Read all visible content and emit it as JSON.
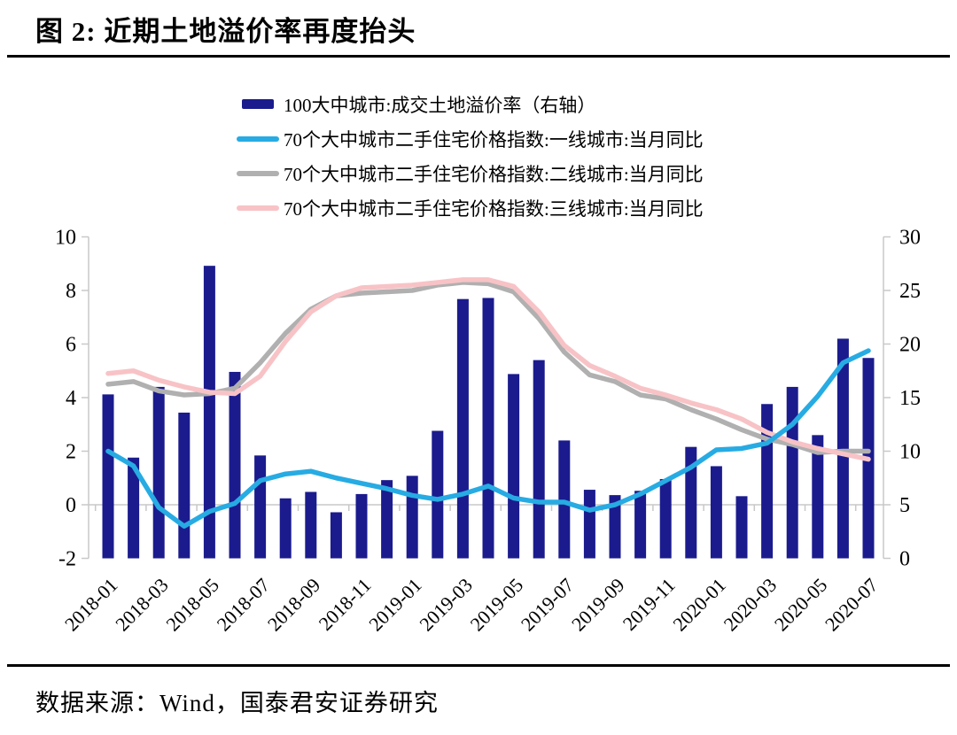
{
  "title": "图 2:  近期土地溢价率再度抬头",
  "source": "数据来源：Wind，国泰君安证券研究",
  "colors": {
    "bar_navy": "#1b1b8e",
    "line_blue": "#27abe3",
    "line_gray": "#b0b0b0",
    "line_pink": "#f8c3c6",
    "axis_gray": "#c8c8c8",
    "text": "#000000"
  },
  "legend": [
    {
      "label": "100大中城市:成交土地溢价率（右轴）",
      "marker": "bar",
      "color": "#1b1b8e"
    },
    {
      "label": "70个大中城市二手住宅价格指数:一线城市:当月同比",
      "marker": "line",
      "color": "#27abe3"
    },
    {
      "label": "70个大中城市二手住宅价格指数:二线城市:当月同比",
      "marker": "line",
      "color": "#b0b0b0"
    },
    {
      "label": "70个大中城市二手住宅价格指数:三线城市:当月同比",
      "marker": "line",
      "color": "#f8c3c6"
    }
  ],
  "chart_data": {
    "type": "bar",
    "subtype": "combo-bar-line",
    "x": [
      "2018-01",
      "2018-02",
      "2018-03",
      "2018-04",
      "2018-05",
      "2018-06",
      "2018-07",
      "2018-08",
      "2018-09",
      "2018-10",
      "2018-11",
      "2018-12",
      "2019-01",
      "2019-02",
      "2019-03",
      "2019-04",
      "2019-05",
      "2019-06",
      "2019-07",
      "2019-08",
      "2019-09",
      "2019-10",
      "2019-11",
      "2019-12",
      "2020-01",
      "2020-02",
      "2020-03",
      "2020-04",
      "2020-05",
      "2020-06",
      "2020-07"
    ],
    "x_tick_labels": [
      "2018-01",
      "2018-03",
      "2018-05",
      "2018-07",
      "2018-09",
      "2018-11",
      "2019-01",
      "2019-03",
      "2019-05",
      "2019-07",
      "2019-09",
      "2019-11",
      "2020-01",
      "2020-03",
      "2020-05",
      "2020-07"
    ],
    "left_axis": {
      "ticks": [
        10,
        8,
        6,
        4,
        2,
        0,
        -2
      ],
      "range": [
        -2,
        10
      ]
    },
    "right_axis": {
      "ticks": [
        30,
        25,
        20,
        15,
        10,
        5,
        0
      ],
      "range": [
        0,
        30
      ]
    },
    "grid": "zero-line-only",
    "legend_position": "top",
    "series": [
      {
        "name": "100大中城市:成交土地溢价率（右轴）",
        "type": "bar",
        "axis": "right",
        "color": "#1b1b8e",
        "values": [
          15.3,
          9.4,
          16.0,
          13.6,
          27.3,
          17.4,
          9.6,
          5.6,
          6.2,
          4.3,
          6.0,
          7.3,
          7.7,
          11.9,
          24.2,
          24.3,
          17.2,
          18.5,
          11.0,
          6.4,
          5.9,
          6.3,
          7.4,
          10.4,
          8.6,
          5.8,
          14.4,
          16.0,
          11.5,
          20.5,
          18.7
        ]
      },
      {
        "name": "70个大中城市二手住宅价格指数:二线城市:当月同比",
        "type": "line",
        "axis": "left",
        "color": "#b0b0b0",
        "values": [
          4.5,
          4.6,
          4.25,
          4.1,
          4.15,
          4.35,
          5.3,
          6.4,
          7.3,
          7.8,
          7.9,
          7.95,
          8.0,
          8.2,
          8.3,
          8.25,
          7.95,
          6.95,
          5.7,
          4.85,
          4.6,
          4.1,
          3.95,
          3.55,
          3.2,
          2.8,
          2.45,
          2.25,
          1.95,
          2.0,
          2.0
        ]
      },
      {
        "name": "70个大中城市二手住宅价格指数:三线城市:当月同比",
        "type": "line",
        "axis": "left",
        "color": "#f8c3c6",
        "values": [
          4.9,
          5.0,
          4.65,
          4.4,
          4.2,
          4.15,
          4.8,
          6.1,
          7.2,
          7.8,
          8.1,
          8.15,
          8.2,
          8.3,
          8.4,
          8.4,
          8.15,
          7.2,
          5.95,
          5.2,
          4.8,
          4.35,
          4.1,
          3.8,
          3.55,
          3.2,
          2.7,
          2.35,
          2.1,
          1.9,
          1.7
        ]
      },
      {
        "name": "70个大中城市二手住宅价格指数:一线城市:当月同比",
        "type": "line",
        "axis": "left",
        "color": "#27abe3",
        "values": [
          2.0,
          1.45,
          -0.1,
          -0.8,
          -0.25,
          0.05,
          0.9,
          1.15,
          1.25,
          1.0,
          0.8,
          0.6,
          0.35,
          0.2,
          0.4,
          0.7,
          0.25,
          0.1,
          0.1,
          -0.2,
          0.0,
          0.4,
          0.9,
          1.4,
          2.05,
          2.1,
          2.3,
          3.0,
          4.05,
          5.3,
          5.75
        ]
      }
    ]
  }
}
